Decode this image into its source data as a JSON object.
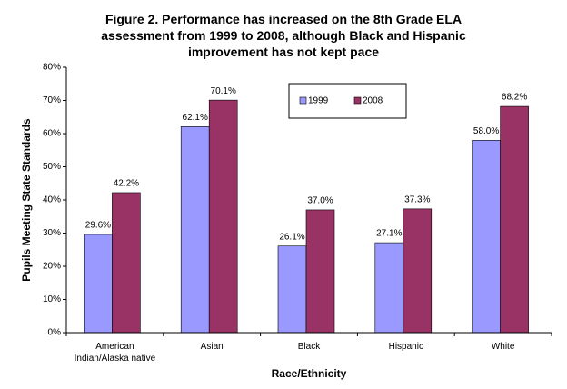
{
  "chart_data": {
    "type": "bar",
    "title": "Figure 2.  Performance has increased on the 8th Grade ELA assessment from 1999 to 2008, although Black and Hispanic improvement has not kept pace",
    "x_label": "Race/Ethnicity",
    "y_label": "Pupils Meeting State Standards",
    "categories": [
      "American Indian/Alaska native",
      "Asian",
      "Black",
      "Hispanic",
      "White"
    ],
    "series": [
      {
        "name": "1999",
        "color": "#9999ff",
        "values": [
          29.6,
          62.1,
          26.1,
          27.1,
          58.0
        ],
        "value_labels": [
          "29.6%",
          "62.1%",
          "26.1%",
          "27.1%",
          "58.0%"
        ]
      },
      {
        "name": "2008",
        "color": "#993366",
        "values": [
          42.2,
          70.1,
          37.0,
          37.3,
          68.2
        ],
        "value_labels": [
          "42.2%",
          "70.1%",
          "37.0%",
          "37.3%",
          "68.2%"
        ]
      }
    ],
    "ylim": [
      0,
      80
    ],
    "yticks": [
      {
        "value": 0,
        "label": "0%"
      },
      {
        "value": 10,
        "label": "10%"
      },
      {
        "value": 20,
        "label": "20%"
      },
      {
        "value": 30,
        "label": "30%"
      },
      {
        "value": 40,
        "label": "40%"
      },
      {
        "value": 50,
        "label": "50%"
      },
      {
        "value": 60,
        "label": "60%"
      },
      {
        "value": 70,
        "label": "70%"
      },
      {
        "value": 80,
        "label": "80%"
      }
    ],
    "grid": false
  }
}
